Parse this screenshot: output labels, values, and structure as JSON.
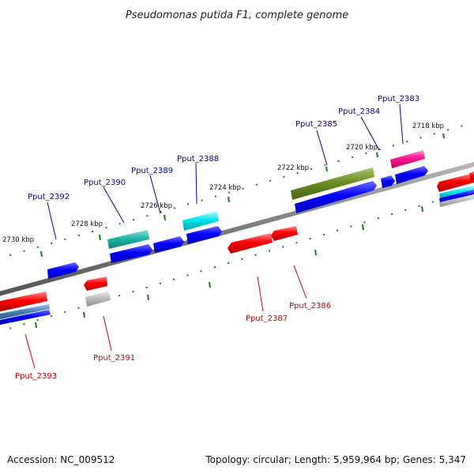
{
  "title": "Pseudomonas putida F1, complete genome",
  "footer": {
    "accession": "Accession: NC_009512",
    "summary": "Topology: circular; Length: 5,959,964 bp; Genes: 5,347"
  },
  "ticks": [
    {
      "label": "2718 kbp"
    },
    {
      "label": "2720 kbp"
    },
    {
      "label": "2722 kbp"
    },
    {
      "label": "2724 kbp"
    },
    {
      "label": "2726 kbp"
    },
    {
      "label": "2728 kbp"
    },
    {
      "label": "2730 kbp"
    }
  ],
  "genes_top": [
    {
      "label": "Pput_2383",
      "color": "#0000aa"
    },
    {
      "label": "Pput_2384",
      "color": "#0000aa"
    },
    {
      "label": "Pput_2385",
      "color": "#0000aa"
    },
    {
      "label": "Pput_2388",
      "color": "#0000aa"
    },
    {
      "label": "Pput_2389",
      "color": "#0000aa"
    },
    {
      "label": "Pput_2390",
      "color": "#0000aa"
    },
    {
      "label": "Pput_2392",
      "color": "#0000aa"
    }
  ],
  "genes_bottom": [
    {
      "label": "Pput_2386",
      "color": "#cc0000"
    },
    {
      "label": "Pput_2387",
      "color": "#cc0000"
    },
    {
      "label": "Pput_2391",
      "color": "#cc0000"
    },
    {
      "label": "Pput_2393",
      "color": "#cc0000"
    }
  ],
  "colors": {
    "forward_cds": "#0000ff",
    "reverse_cds": "#ff0000",
    "backbone": "#888888",
    "tick_marks": "#1a7a1a",
    "cyan_feature": "#00d8e0",
    "magenta_feature": "#ff1493",
    "olive_feature": "#6b8e23",
    "teal_feature": "#20b2aa",
    "grey_feature": "#b0b0b0",
    "steelblue_feature": "#4682b4"
  }
}
